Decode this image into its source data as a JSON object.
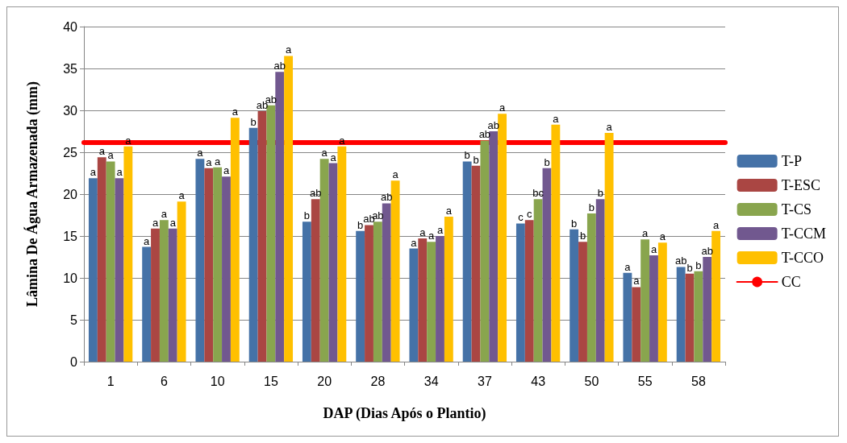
{
  "chart_data": {
    "type": "bar",
    "xlabel": "DAP (Dias Após o Plantio)",
    "ylabel": "Lâmina De Água Armazenada (mm)",
    "categories": [
      "1",
      "6",
      "10",
      "15",
      "20",
      "28",
      "34",
      "37",
      "43",
      "50",
      "55",
      "58"
    ],
    "series": [
      {
        "name": "T-P",
        "color": "#4572a7",
        "values": [
          21.9,
          13.7,
          24.2,
          27.9,
          16.7,
          15.6,
          13.5,
          23.9,
          16.5,
          15.8,
          10.6,
          11.3
        ],
        "value_labels": [
          "a",
          "a",
          "a",
          "b",
          "b",
          "b",
          "a",
          "b",
          "c",
          "b",
          "a",
          "ab"
        ]
      },
      {
        "name": "T-ESC",
        "color": "#aa4643",
        "values": [
          24.4,
          15.9,
          23.1,
          29.9,
          19.4,
          16.3,
          14.7,
          23.4,
          16.9,
          14.3,
          8.9,
          10.5
        ],
        "value_labels": [
          "a",
          "a",
          "a",
          "ab",
          "ab",
          "ab",
          "a",
          "b",
          "c",
          "b",
          "a",
          "b"
        ]
      },
      {
        "name": "T-CS",
        "color": "#89a54e",
        "values": [
          23.9,
          16.9,
          23.2,
          30.6,
          24.2,
          16.7,
          14.3,
          26.4,
          19.4,
          17.7,
          14.6,
          10.8
        ],
        "value_labels": [
          "a",
          "a",
          "a",
          "ab",
          "a",
          "ab",
          "a",
          "ab",
          "bc",
          "b",
          "a",
          "b"
        ]
      },
      {
        "name": "T-CCM",
        "color": "#71588f",
        "values": [
          21.9,
          15.9,
          22.1,
          34.6,
          23.7,
          18.9,
          15.0,
          27.5,
          23.1,
          19.4,
          12.7,
          12.5
        ],
        "value_labels": [
          "a",
          "a",
          "a",
          "ab",
          "a",
          "ab",
          "a",
          "ab",
          "b",
          "b",
          "a",
          "ab"
        ]
      },
      {
        "name": "T-CCO",
        "color": "#ffc000",
        "values": [
          25.7,
          19.1,
          29.1,
          36.5,
          25.7,
          21.6,
          17.3,
          29.6,
          28.3,
          27.3,
          14.2,
          15.6
        ],
        "value_labels": [
          "a",
          "a",
          "a",
          "a",
          "a",
          "a",
          "a",
          "a",
          "a",
          "a",
          "a",
          "a"
        ]
      }
    ],
    "ref_lines": [
      {
        "axis": "y",
        "value": 26.2,
        "label": "CC",
        "color": "#ff0000"
      }
    ],
    "ylim": [
      0,
      40
    ],
    "yticks": [
      0,
      5,
      10,
      15,
      20,
      25,
      30,
      35,
      40
    ],
    "grid": "y",
    "legend": "right"
  }
}
